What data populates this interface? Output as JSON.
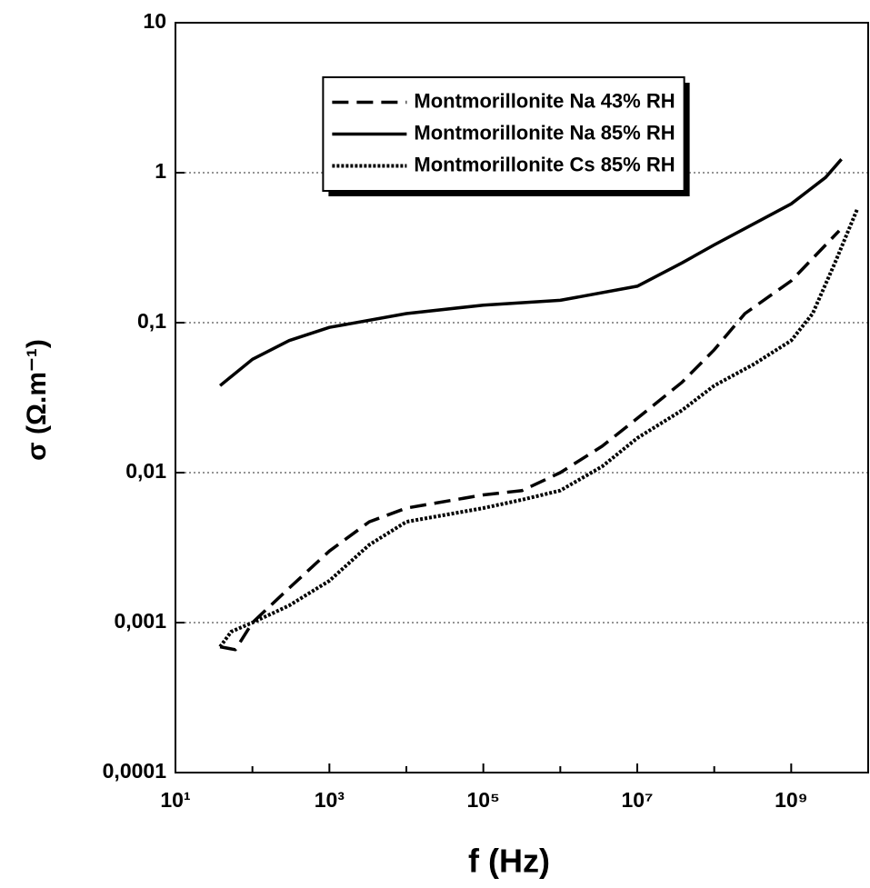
{
  "chart_data": {
    "type": "line",
    "xlabel": "f (Hz)",
    "ylabel": "σ (Ω.m⁻¹)",
    "xscale": "log",
    "yscale": "log",
    "xlim": [
      10,
      10000000000
    ],
    "ylim": [
      0.0001,
      10
    ],
    "xticks": [
      {
        "value": 10,
        "label": "10¹"
      },
      {
        "value": 1000,
        "label": "10³"
      },
      {
        "value": 100000,
        "label": "10⁵"
      },
      {
        "value": 10000000,
        "label": "10⁷"
      },
      {
        "value": 1000000000,
        "label": "10⁹"
      }
    ],
    "xminorticks": [
      100,
      10000,
      1000000,
      100000000
    ],
    "yticks": [
      {
        "value": 0.0001,
        "label": "0,0001"
      },
      {
        "value": 0.001,
        "label": "0,001"
      },
      {
        "value": 0.01,
        "label": "0,01"
      },
      {
        "value": 0.1,
        "label": "0,1"
      },
      1,
      10
    ],
    "grid": "horizontal-dotted",
    "legend_loc": "upper center",
    "series": [
      {
        "name": "Montmorillonite Na 43% RH",
        "color": "#000000",
        "dash": "dashed",
        "x": [
          38,
          60,
          100,
          300,
          1000,
          3300,
          10000,
          100000,
          320000,
          1000000,
          3500000,
          10000000,
          38000000,
          100000000,
          250000000,
          1000000000,
          4200000000
        ],
        "values": [
          0.00069,
          0.00066,
          0.001,
          0.0017,
          0.003,
          0.0047,
          0.0058,
          0.0071,
          0.0076,
          0.01,
          0.015,
          0.023,
          0.04,
          0.066,
          0.115,
          0.19,
          0.41
        ]
      },
      {
        "name": "Montmorillonite Na 85% RH",
        "color": "#000000",
        "dash": "solid",
        "x": [
          38,
          100,
          300,
          1000,
          10000,
          100000,
          1000000,
          10000000,
          38000000,
          100000000,
          1000000000,
          2800000000,
          4500000000
        ],
        "values": [
          0.038,
          0.057,
          0.076,
          0.093,
          0.115,
          0.131,
          0.141,
          0.175,
          0.25,
          0.33,
          0.62,
          0.93,
          1.23
        ]
      },
      {
        "name": "Montmorillonite Cs 85% RH",
        "color": "#000000",
        "dash": "dotted",
        "x": [
          38,
          53,
          100,
          300,
          1000,
          3300,
          10000,
          100000,
          320000,
          1000000,
          3500000,
          10000000,
          38000000,
          100000000,
          330000000,
          1000000000,
          1900000000,
          3700000000,
          7200000000
        ],
        "values": [
          0.00069,
          0.00087,
          0.001,
          0.0013,
          0.0019,
          0.0033,
          0.0047,
          0.0058,
          0.0066,
          0.0076,
          0.011,
          0.017,
          0.026,
          0.038,
          0.053,
          0.076,
          0.115,
          0.25,
          0.57
        ]
      }
    ]
  }
}
